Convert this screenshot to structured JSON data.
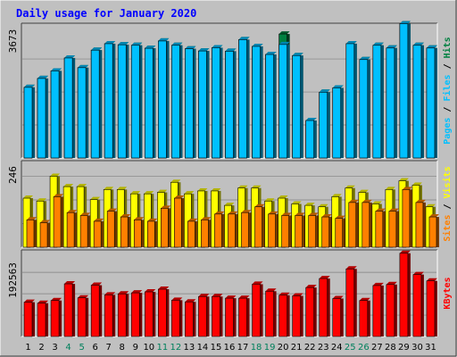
{
  "chart_data": [
    {
      "type": "bar",
      "title": "Daily usage for January 2020",
      "categories": [
        "1",
        "2",
        "3",
        "4",
        "5",
        "6",
        "7",
        "8",
        "9",
        "10",
        "11",
        "12",
        "13",
        "14",
        "15",
        "16",
        "17",
        "18",
        "19",
        "20",
        "21",
        "22",
        "23",
        "24",
        "25",
        "26",
        "27",
        "28",
        "29",
        "30",
        "31"
      ],
      "weekend_days": [
        "4",
        "5",
        "11",
        "12",
        "18",
        "19",
        "25",
        "26"
      ],
      "ytick": "3673",
      "ylim": [
        0,
        5000
      ],
      "ylabel": [
        "Pages",
        "Files",
        "Hits"
      ],
      "series": [
        {
          "name": "Hits",
          "color": "#008040",
          "values": [
            2620,
            2950,
            3230,
            3710,
            3350,
            4000,
            4240,
            4200,
            4180,
            4070,
            4340,
            4180,
            4050,
            3970,
            4090,
            3960,
            4390,
            4140,
            3840,
            4600,
            3800,
            1390,
            2440,
            2600,
            4240,
            3650,
            4180,
            4080,
            4980,
            4180,
            4080
          ]
        },
        {
          "name": "Files",
          "color": "#00c0ff",
          "values": [
            2620,
            2950,
            3230,
            3710,
            3350,
            4000,
            4240,
            4200,
            4180,
            4070,
            4340,
            4180,
            4050,
            3970,
            4090,
            3960,
            4390,
            4140,
            3840,
            4210,
            3800,
            1390,
            2440,
            2600,
            4240,
            3650,
            4180,
            4080,
            4980,
            4180,
            4080
          ]
        },
        {
          "name": "Pages",
          "color": "#00c0ff",
          "values": [
            0,
            0,
            0,
            0,
            0,
            0,
            0,
            0,
            0,
            0,
            0,
            0,
            0,
            0,
            0,
            0,
            0,
            0,
            0,
            0,
            0,
            0,
            0,
            0,
            0,
            0,
            0,
            0,
            0,
            0,
            0
          ]
        }
      ]
    },
    {
      "type": "bar",
      "categories": [
        "1",
        "2",
        "3",
        "4",
        "5",
        "6",
        "7",
        "8",
        "9",
        "10",
        "11",
        "12",
        "13",
        "14",
        "15",
        "16",
        "17",
        "18",
        "19",
        "20",
        "21",
        "22",
        "23",
        "24",
        "25",
        "26",
        "27",
        "28",
        "29",
        "30",
        "31"
      ],
      "ytick": "246",
      "ylim": [
        0,
        300
      ],
      "ylabel": [
        "Sites",
        "Visits"
      ],
      "series": [
        {
          "name": "Visits",
          "color": "#ffff00",
          "values": [
            170,
            160,
            246,
            210,
            210,
            165,
            200,
            200,
            185,
            185,
            190,
            225,
            185,
            195,
            195,
            145,
            205,
            205,
            160,
            170,
            150,
            145,
            140,
            175,
            205,
            190,
            150,
            200,
            230,
            215,
            140
          ]
        },
        {
          "name": "Sites",
          "color": "#ff8000",
          "values": [
            95,
            85,
            175,
            120,
            110,
            90,
            125,
            105,
            95,
            90,
            135,
            170,
            90,
            95,
            115,
            115,
            120,
            140,
            115,
            110,
            110,
            110,
            105,
            100,
            155,
            155,
            125,
            125,
            200,
            155,
            105
          ]
        }
      ]
    },
    {
      "type": "bar",
      "categories": [
        "1",
        "2",
        "3",
        "4",
        "5",
        "6",
        "7",
        "8",
        "9",
        "10",
        "11",
        "12",
        "13",
        "14",
        "15",
        "16",
        "17",
        "18",
        "19",
        "20",
        "21",
        "22",
        "23",
        "24",
        "25",
        "26",
        "27",
        "28",
        "29",
        "30",
        "31"
      ],
      "ytick": "192563",
      "ylim": [
        0,
        260000
      ],
      "ylabel": [
        "KBytes"
      ],
      "series": [
        {
          "name": "KBytes",
          "color": "#ff0000",
          "values": [
            103000,
            100000,
            108000,
            158000,
            116000,
            154000,
            125000,
            128000,
            131000,
            134000,
            142000,
            109000,
            104000,
            120000,
            120000,
            115000,
            115000,
            157000,
            136000,
            124000,
            122000,
            147000,
            174000,
            114000,
            203000,
            108000,
            153000,
            156000,
            250000,
            186000,
            167000
          ]
        }
      ]
    }
  ],
  "colors": {
    "background": "#c0c0c0",
    "plot_bg": "#c0c0c0",
    "title": "#0000ff",
    "axis_text": "#000000",
    "weekend_text": "#00805c",
    "grid": "#808080"
  }
}
